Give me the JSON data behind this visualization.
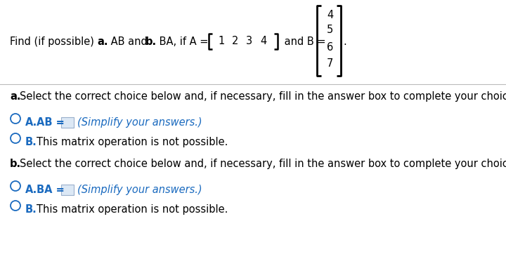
{
  "bg_color": "#ffffff",
  "text_color": "#000000",
  "blue_color": "#1a6abf",
  "separator_color": "#bbbbbb",
  "matrix_A": [
    "1",
    "2",
    "3",
    "4"
  ],
  "matrix_B": [
    "4",
    "5",
    "6",
    "7"
  ],
  "simplify_text": "(Simplify your answers.)",
  "choice_B_text": "This matrix operation is not possible.",
  "font_size_main": 10.5,
  "font_size_small": 10.0
}
